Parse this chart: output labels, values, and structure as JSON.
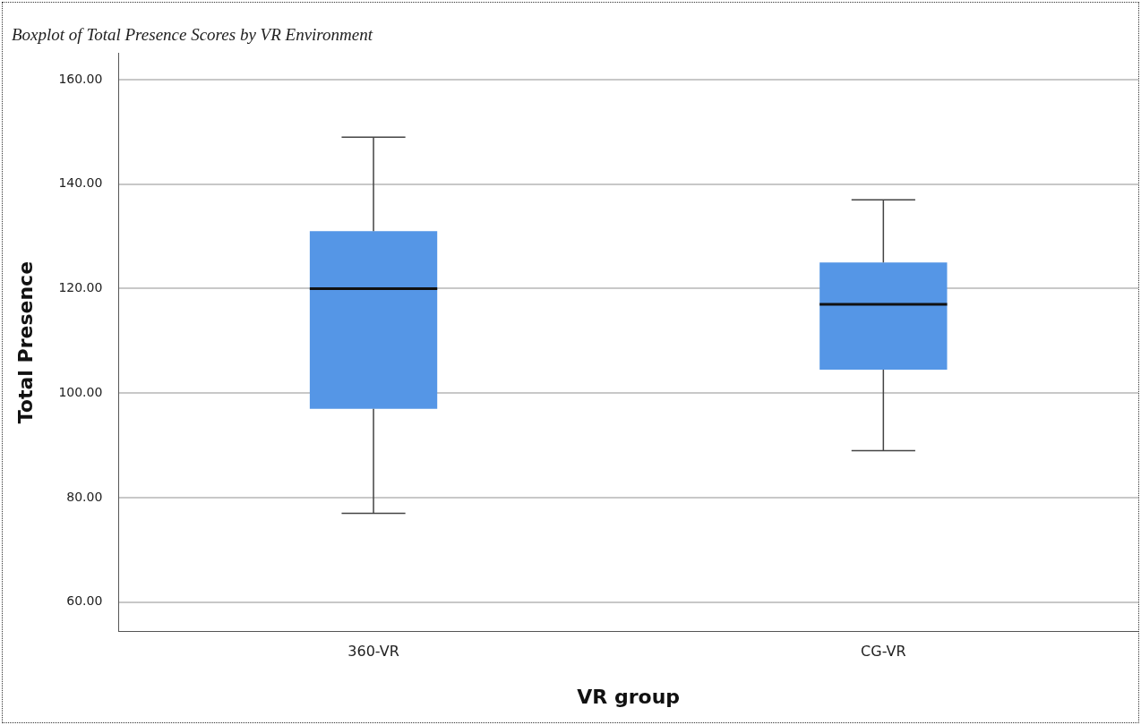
{
  "chart_data": {
    "type": "box",
    "title": "Boxplot of Total Presence Scores by VR Environment",
    "xlabel": "VR group",
    "ylabel": "Total Presence",
    "categories": [
      "360-VR",
      "CG-VR"
    ],
    "boxes": [
      {
        "low": 77,
        "q1": 97,
        "median": 120,
        "q3": 131,
        "high": 149
      },
      {
        "low": 89,
        "q1": 104.5,
        "median": 117,
        "q3": 125,
        "high": 137
      }
    ],
    "color": "#5596e6",
    "ylim": [
      54.4,
      165
    ],
    "yticks": [
      {
        "value": 60,
        "label": "60.00"
      },
      {
        "value": 80,
        "label": "80.00"
      },
      {
        "value": 100,
        "label": "100.00"
      },
      {
        "value": 120,
        "label": "120.00"
      },
      {
        "value": 140,
        "label": "140.00"
      },
      {
        "value": 160,
        "label": "160.00"
      }
    ],
    "grid": "y"
  }
}
